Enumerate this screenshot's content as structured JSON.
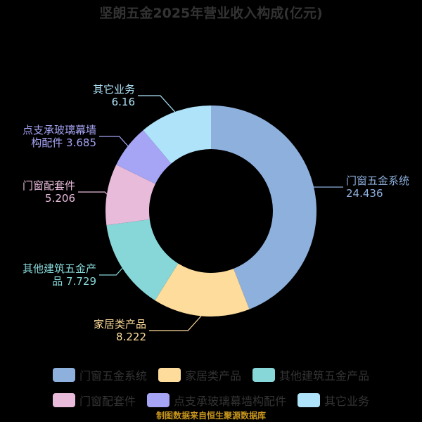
{
  "chart_data": {
    "type": "pie",
    "variant": "donut",
    "title": "坚朗五金2025年营业收入构成(亿元)",
    "categories": [
      "门窗五金系统",
      "家居类产品",
      "其他建筑五金产品",
      "门窗配套件",
      "点支承玻璃幕墙构配件",
      "其它业务"
    ],
    "values": [
      24.436,
      8.222,
      7.729,
      5.206,
      3.685,
      6.16
    ],
    "value_labels": [
      "24.436",
      "8.222",
      "7.729",
      "5.206",
      "3.685",
      "6.16"
    ],
    "colors": [
      "#8eb0dd",
      "#fedc9b",
      "#87d7d8",
      "#e8bbdb",
      "#a5a4f5",
      "#aee3f9"
    ],
    "legend_position": "bottom",
    "start_angle": "top",
    "direction": "clockwise"
  },
  "source": "制图数据来自恒生聚源数据库"
}
